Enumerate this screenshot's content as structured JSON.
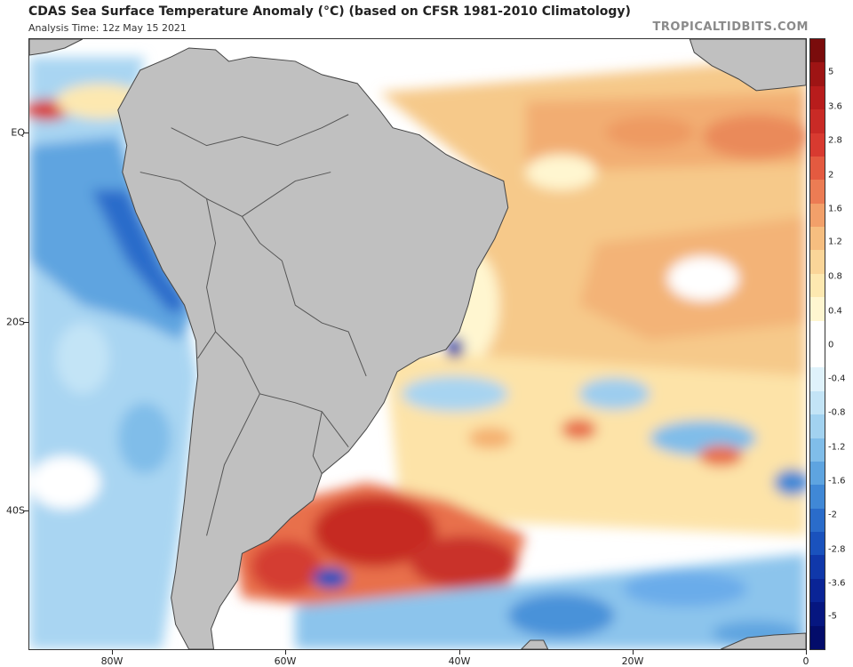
{
  "header": {
    "title": "CDAS Sea Surface Temperature Anomaly (°C) (based on CFSR 1981-2010 Climatology)",
    "subtitle": "Analysis Time: 12z May 15 2021",
    "brand": "TROPICALTIDBITS.COM"
  },
  "map": {
    "lat_labels": [
      "EQ",
      "20S",
      "40S"
    ],
    "lon_labels": [
      "80W",
      "60W",
      "40W",
      "20W",
      "0"
    ],
    "land_color": "#c0c0c0",
    "border_color": "#555555"
  },
  "colorbar": {
    "labels": [
      "5",
      "3.6",
      "2.8",
      "2",
      "1.6",
      "1.2",
      "0.8",
      "0.4",
      "0",
      "-0.4",
      "-0.8",
      "-1.2",
      "-1.6",
      "-2",
      "-2.8",
      "-3.6",
      "-5"
    ],
    "colors": [
      "#7a0c0c",
      "#9e1414",
      "#b81c1c",
      "#c92a26",
      "#d83a30",
      "#e45a40",
      "#ec7c54",
      "#f2a06a",
      "#f6be80",
      "#fad598",
      "#fde8b0",
      "#fff6d0",
      "#ffffff",
      "#ffffff",
      "#dff2fb",
      "#c3e4f6",
      "#a2d2f0",
      "#80bde9",
      "#5ea4e0",
      "#4088d6",
      "#2a6cca",
      "#1a52bd",
      "#1038aa",
      "#0a2496",
      "#061680",
      "#030c6a"
    ]
  }
}
